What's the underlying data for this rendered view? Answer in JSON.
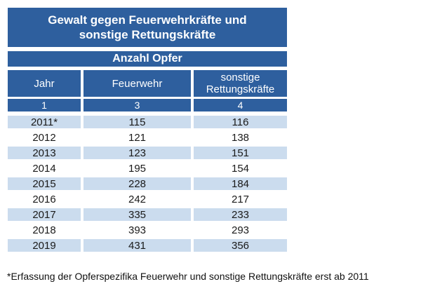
{
  "colors": {
    "header_blue": "#2e5f9e",
    "row_light_blue": "#cbdcee",
    "text_on_blue": "#ffffff",
    "text_dark": "#1a1a1a",
    "background": "#ffffff"
  },
  "chart_data": {
    "type": "table",
    "title": "Gewalt gegen Feuerwehrkräfte und\nsonstige Rettungskräfte",
    "subtitle": "Anzahl Opfer",
    "columns": [
      "Jahr",
      "Feuerwehr",
      "sonstige Rettungskräfte"
    ],
    "column_numbers": [
      "1",
      "3",
      "4"
    ],
    "categories": [
      "2011*",
      "2012",
      "2013",
      "2014",
      "2015",
      "2016",
      "2017",
      "2018",
      "2019"
    ],
    "series": [
      {
        "name": "Feuerwehr",
        "values": [
          115,
          121,
          123,
          195,
          228,
          242,
          335,
          393,
          431
        ]
      },
      {
        "name": "sonstige Rettungskräfte",
        "values": [
          116,
          138,
          151,
          154,
          184,
          217,
          233,
          293,
          356
        ]
      }
    ],
    "footnote": "*Erfassung der Opferspezifika Feuerwehr und sonstige Rettungskräfte erst ab 2011"
  }
}
